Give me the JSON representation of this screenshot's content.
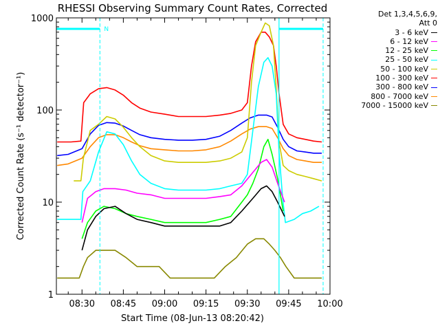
{
  "chart_data": {
    "type": "line",
    "title": "RHESSI Observing Summary Count Rates, Corrected",
    "xlabel": "Start Time (08-Jun-13 08:20:42)",
    "ylabel": "Corrected Count Rate (s⁻¹ detector⁻¹)",
    "yscale": "log",
    "ylim": [
      1,
      1000
    ],
    "xlim_min": [
      20.7,
      120
    ],
    "x_ticks": [
      {
        "min": 30,
        "label": "08:30"
      },
      {
        "min": 45,
        "label": "08:45"
      },
      {
        "min": 60,
        "label": "09:00"
      },
      {
        "min": 75,
        "label": "09:15"
      },
      {
        "min": 90,
        "label": "09:30"
      },
      {
        "min": 105,
        "label": "09:45"
      },
      {
        "min": 120,
        "label": "10:00"
      }
    ],
    "y_ticks": [
      {
        "value": 1,
        "label": "1"
      },
      {
        "value": 10,
        "label": "10"
      },
      {
        "value": 100,
        "label": "100"
      },
      {
        "value": 1000,
        "label": "1000"
      }
    ],
    "legend_header": [
      "Det 1,3,4,5,6,9,",
      "Att 0"
    ],
    "markers": {
      "night_label": "N",
      "night_start_min": 36.5,
      "day_start_min": 101.5,
      "saa_end_min": 117.5
    },
    "series": [
      {
        "name": "3 - 6 keV",
        "color": "#000000",
        "x": [
          30,
          32,
          35,
          38,
          42,
          46,
          50,
          55,
          60,
          65,
          70,
          75,
          80,
          84,
          88,
          92,
          95,
          97,
          99,
          101,
          103.5
        ],
        "values": [
          3,
          5,
          7,
          8.5,
          9,
          7.5,
          6.5,
          6,
          5.5,
          5.5,
          5.5,
          5.5,
          5.5,
          6,
          8,
          11,
          14,
          15,
          13,
          10,
          7
        ]
      },
      {
        "name": "6 - 12 keV",
        "color": "#ff00ff",
        "x": [
          30,
          32,
          35,
          38,
          42,
          46,
          50,
          55,
          60,
          65,
          70,
          75,
          80,
          84,
          88,
          92,
          95,
          97,
          99,
          101,
          103.5
        ],
        "values": [
          6,
          11,
          13,
          14,
          14,
          13.5,
          12.5,
          12,
          11,
          11,
          11,
          11,
          11.5,
          12,
          15,
          21,
          27,
          29,
          24,
          16,
          10
        ]
      },
      {
        "name": "12 - 25 keV",
        "color": "#00ff00",
        "x": [
          30,
          32,
          35,
          38,
          42,
          46,
          50,
          55,
          60,
          65,
          70,
          75,
          80,
          84,
          88,
          90,
          92,
          94,
          96,
          97.5,
          99,
          101,
          103
        ],
        "values": [
          4,
          6,
          8,
          9,
          8.5,
          7.5,
          7,
          6.5,
          6,
          6,
          6,
          6,
          6.5,
          7,
          10,
          12,
          16,
          23,
          40,
          48,
          33,
          18,
          8
        ]
      },
      {
        "name": "25 - 50 keV",
        "color": "#00ffff",
        "x": [
          21,
          29.6,
          30.3,
          33,
          36,
          39,
          42,
          45,
          48,
          51,
          55,
          60,
          65,
          70,
          75,
          80,
          84,
          88,
          90,
          92,
          94,
          96,
          97.5,
          99,
          100.5,
          101.5,
          102.8,
          103.8,
          107,
          110,
          113,
          116
        ],
        "values": [
          6.5,
          6.5,
          13,
          17,
          35,
          58,
          55,
          42,
          28,
          20,
          16,
          14,
          13.5,
          13.5,
          13.5,
          14,
          15,
          16,
          20,
          60,
          180,
          330,
          370,
          300,
          150,
          35,
          11,
          6,
          6.5,
          7.5,
          8,
          9
        ]
      },
      {
        "name": "50 - 100 keV",
        "color": "#cccc00",
        "x": [
          27,
          29.6,
          30.5,
          33,
          36,
          39,
          42,
          45,
          48,
          51,
          55,
          60,
          65,
          70,
          75,
          80,
          84,
          88,
          90,
          91.5,
          93,
          95,
          96.5,
          98,
          99.5,
          100.5,
          101.5,
          103,
          105,
          108,
          111,
          114,
          117
        ],
        "values": [
          17,
          17,
          30,
          60,
          70,
          85,
          80,
          65,
          50,
          40,
          32,
          28,
          27,
          27,
          27,
          28,
          30,
          35,
          50,
          200,
          500,
          700,
          880,
          820,
          500,
          170,
          45,
          25,
          22,
          20,
          19,
          18,
          17
        ]
      },
      {
        "name": "100 - 300 keV",
        "color": "#ff0000",
        "x": [
          21,
          26,
          29.6,
          30.6,
          33,
          36,
          39,
          42,
          45,
          48,
          51,
          55,
          60,
          65,
          70,
          75,
          80,
          84,
          88,
          90,
          91.5,
          93,
          95,
          96.5,
          98,
          99.5,
          100.5,
          101.5,
          103,
          105,
          108,
          111,
          114,
          117
        ],
        "values": [
          45,
          45,
          46,
          120,
          150,
          170,
          175,
          165,
          145,
          120,
          105,
          95,
          90,
          85,
          85,
          85,
          88,
          92,
          100,
          120,
          300,
          550,
          700,
          700,
          620,
          500,
          300,
          150,
          70,
          55,
          50,
          48,
          46,
          45
        ]
      },
      {
        "name": "300 - 800 keV",
        "color": "#0000ff",
        "x": [
          21,
          25,
          30,
          33,
          36,
          39,
          42,
          45,
          48,
          51,
          55,
          60,
          65,
          70,
          75,
          80,
          84,
          88,
          91,
          94,
          97,
          99,
          101,
          103,
          105,
          108,
          111,
          114,
          117
        ],
        "values": [
          32,
          33,
          38,
          55,
          68,
          73,
          72,
          67,
          60,
          54,
          50,
          48,
          47,
          47,
          48,
          52,
          60,
          72,
          82,
          88,
          88,
          84,
          65,
          48,
          40,
          36,
          35,
          34,
          34
        ]
      },
      {
        "name": "800 - 7000 keV",
        "color": "#ff8800",
        "x": [
          21,
          25,
          30,
          33,
          36,
          39,
          42,
          45,
          48,
          51,
          55,
          60,
          65,
          70,
          75,
          80,
          84,
          88,
          91,
          94,
          97,
          99,
          101,
          103,
          105,
          108,
          111,
          114,
          117
        ],
        "values": [
          25,
          26,
          30,
          40,
          50,
          54,
          54,
          50,
          45,
          41,
          38,
          37,
          36,
          36,
          37,
          40,
          46,
          55,
          62,
          66,
          66,
          63,
          50,
          38,
          32,
          29,
          28,
          27,
          27
        ]
      },
      {
        "name": "7000 - 15000 keV",
        "color": "#888800",
        "x": [
          21,
          27,
          29,
          30.5,
          32,
          35,
          38,
          42,
          46,
          50,
          54,
          58,
          62,
          66,
          70,
          74,
          78,
          82,
          86,
          90,
          93,
          96,
          98,
          100,
          102,
          104,
          107,
          110,
          114,
          117
        ],
        "values": [
          1.5,
          1.5,
          1.5,
          2,
          2.5,
          3,
          3,
          3,
          2.5,
          2,
          2,
          2,
          1.5,
          1.5,
          1.5,
          1.5,
          1.5,
          2,
          2.5,
          3.5,
          4,
          4,
          3.5,
          3,
          2.5,
          2,
          1.5,
          1.5,
          1.5,
          1.5
        ]
      }
    ]
  }
}
